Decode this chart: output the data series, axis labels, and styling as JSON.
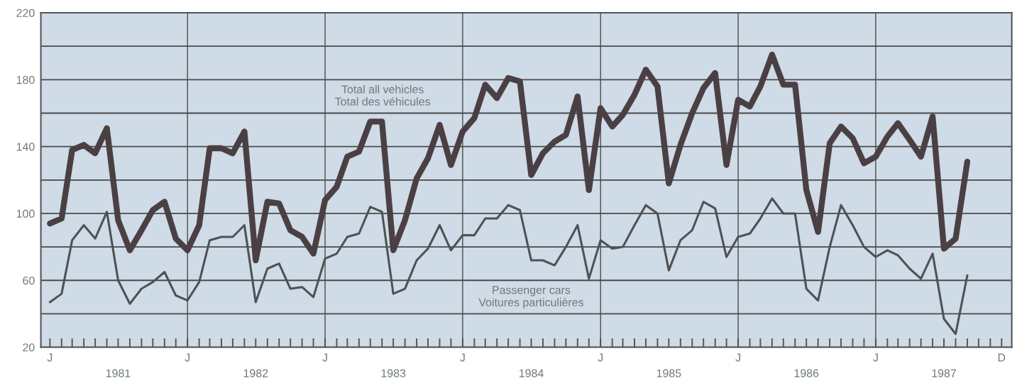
{
  "chart_data": {
    "type": "line",
    "x": [
      "1981-01",
      "1981-02",
      "1981-03",
      "1981-04",
      "1981-05",
      "1981-06",
      "1981-07",
      "1981-08",
      "1981-09",
      "1981-10",
      "1981-11",
      "1981-12",
      "1982-01",
      "1982-02",
      "1982-03",
      "1982-04",
      "1982-05",
      "1982-06",
      "1982-07",
      "1982-08",
      "1982-09",
      "1982-10",
      "1982-11",
      "1982-12",
      "1983-01",
      "1983-02",
      "1983-03",
      "1983-04",
      "1983-05",
      "1983-06",
      "1983-07",
      "1983-08",
      "1983-09",
      "1983-10",
      "1983-11",
      "1983-12",
      "1984-01",
      "1984-02",
      "1984-03",
      "1984-04",
      "1984-05",
      "1984-06",
      "1984-07",
      "1984-08",
      "1984-09",
      "1984-10",
      "1984-11",
      "1984-12",
      "1985-01",
      "1985-02",
      "1985-03",
      "1985-04",
      "1985-05",
      "1985-06",
      "1985-07",
      "1985-08",
      "1985-09",
      "1985-10",
      "1985-11",
      "1985-12",
      "1986-01",
      "1986-02",
      "1986-03",
      "1986-04",
      "1986-05",
      "1986-06",
      "1986-07",
      "1986-08",
      "1986-09",
      "1986-10",
      "1986-11",
      "1986-12",
      "1987-01",
      "1987-02",
      "1987-03",
      "1987-04",
      "1987-05",
      "1987-06",
      "1987-07",
      "1987-08",
      "1987-09"
    ],
    "series": [
      {
        "name": "Total all vehicles\nTotal des véhicules",
        "color": "#4a4044",
        "values": [
          94,
          97,
          138,
          141,
          136,
          151,
          96,
          78,
          90,
          102,
          107,
          85,
          78,
          93,
          139,
          139,
          136,
          149,
          72,
          107,
          106,
          90,
          86,
          76,
          108,
          116,
          134,
          137,
          155,
          155,
          78,
          96,
          121,
          133,
          153,
          129,
          149,
          157,
          177,
          169,
          181,
          179,
          123,
          136,
          143,
          147,
          170,
          114,
          163,
          152,
          159,
          171,
          186,
          176,
          118,
          141,
          160,
          175,
          184,
          129,
          168,
          164,
          176,
          195,
          177,
          177,
          114,
          89,
          142,
          152,
          145,
          130,
          134,
          146,
          154,
          144,
          134,
          158,
          79,
          85,
          131
        ]
      },
      {
        "name": "Passenger cars\nVoitures particulières",
        "color": "#4f5155",
        "values": [
          47,
          52,
          84,
          93,
          85,
          101,
          60,
          46,
          55,
          59,
          65,
          51,
          48,
          59,
          84,
          86,
          86,
          93,
          47,
          67,
          70,
          55,
          56,
          50,
          73,
          76,
          86,
          88,
          104,
          101,
          52,
          55,
          72,
          79,
          93,
          78,
          87,
          87,
          97,
          97,
          105,
          102,
          72,
          72,
          69,
          80,
          93,
          61,
          84,
          79,
          80,
          93,
          105,
          100,
          66,
          84,
          90,
          107,
          103,
          74,
          86,
          88,
          97,
          109,
          100,
          100,
          55,
          48,
          80,
          105,
          93,
          80,
          74,
          78,
          75,
          67,
          61,
          76,
          37,
          28,
          63
        ]
      }
    ],
    "xlim": [
      "1980-12-08",
      "1987-12-28"
    ],
    "xticks": [
      {
        "value": "1981-01",
        "label": null
      },
      {
        "value": "1981-02",
        "label": null
      },
      {
        "value": "1981-03",
        "label": null
      },
      {
        "value": "1981-04",
        "label": null
      },
      {
        "value": "1981-05",
        "label": null
      },
      {
        "value": "1981-06",
        "label": null
      },
      {
        "value": "1981-07",
        "label": "1981"
      },
      {
        "value": "1981-08",
        "label": null
      },
      {
        "value": "1981-09",
        "label": null
      },
      {
        "value": "1981-10",
        "label": null
      },
      {
        "value": "1981-11",
        "label": null
      },
      {
        "value": "1981-12",
        "label": null
      },
      {
        "value": "1982-01",
        "label": null
      },
      {
        "value": "1982-02",
        "label": null
      },
      {
        "value": "1982-03",
        "label": null
      },
      {
        "value": "1982-04",
        "label": null
      },
      {
        "value": "1982-05",
        "label": null
      },
      {
        "value": "1982-06",
        "label": null
      },
      {
        "value": "1982-07",
        "label": "1982"
      },
      {
        "value": "1982-08",
        "label": null
      },
      {
        "value": "1982-09",
        "label": null
      },
      {
        "value": "1982-10",
        "label": null
      },
      {
        "value": "1982-11",
        "label": null
      },
      {
        "value": "1982-12",
        "label": null
      },
      {
        "value": "1983-01",
        "label": null
      },
      {
        "value": "1983-02",
        "label": null
      },
      {
        "value": "1983-03",
        "label": null
      },
      {
        "value": "1983-04",
        "label": null
      },
      {
        "value": "1983-05",
        "label": null
      },
      {
        "value": "1983-06",
        "label": null
      },
      {
        "value": "1983-07",
        "label": "1983"
      },
      {
        "value": "1983-08",
        "label": null
      },
      {
        "value": "1983-09",
        "label": null
      },
      {
        "value": "1983-10",
        "label": null
      },
      {
        "value": "1983-11",
        "label": null
      },
      {
        "value": "1983-12",
        "label": null
      },
      {
        "value": "1984-01",
        "label": null
      },
      {
        "value": "1984-02",
        "label": null
      },
      {
        "value": "1984-03",
        "label": null
      },
      {
        "value": "1984-04",
        "label": null
      },
      {
        "value": "1984-05",
        "label": null
      },
      {
        "value": "1984-06",
        "label": null
      },
      {
        "value": "1984-07",
        "label": "1984"
      },
      {
        "value": "1984-08",
        "label": null
      },
      {
        "value": "1984-09",
        "label": null
      },
      {
        "value": "1984-10",
        "label": null
      },
      {
        "value": "1984-11",
        "label": null
      },
      {
        "value": "1984-12",
        "label": null
      },
      {
        "value": "1985-01",
        "label": null
      },
      {
        "value": "1985-02",
        "label": null
      },
      {
        "value": "1985-03",
        "label": null
      },
      {
        "value": "1985-04",
        "label": null
      },
      {
        "value": "1985-05",
        "label": null
      },
      {
        "value": "1985-06",
        "label": null
      },
      {
        "value": "1985-07",
        "label": "1985"
      },
      {
        "value": "1985-08",
        "label": null
      },
      {
        "value": "1985-09",
        "label": null
      },
      {
        "value": "1985-10",
        "label": null
      },
      {
        "value": "1985-11",
        "label": null
      },
      {
        "value": "1985-12",
        "label": null
      },
      {
        "value": "1986-01",
        "label": null
      },
      {
        "value": "1986-02",
        "label": null
      },
      {
        "value": "1986-03",
        "label": null
      },
      {
        "value": "1986-04",
        "label": null
      },
      {
        "value": "1986-05",
        "label": null
      },
      {
        "value": "1986-06",
        "label": null
      },
      {
        "value": "1986-07",
        "label": "1986"
      },
      {
        "value": "1986-08",
        "label": null
      },
      {
        "value": "1986-09",
        "label": null
      },
      {
        "value": "1986-10",
        "label": null
      },
      {
        "value": "1986-11",
        "label": null
      },
      {
        "value": "1986-12",
        "label": null
      },
      {
        "value": "1987-01",
        "label": null
      },
      {
        "value": "1987-02",
        "label": null
      },
      {
        "value": "1987-03",
        "label": null
      },
      {
        "value": "1987-04",
        "label": null
      },
      {
        "value": "1987-05",
        "label": null
      },
      {
        "value": "1987-06",
        "label": null
      },
      {
        "value": "1987-07",
        "label": "1987"
      },
      {
        "value": "1987-08",
        "label": null
      },
      {
        "value": "1987-09",
        "label": null
      },
      {
        "value": "1987-10",
        "label": null
      },
      {
        "value": "1987-11",
        "label": null
      },
      {
        "value": "1987-12",
        "label": null
      }
    ],
    "annotations": [
      "J",
      "J",
      "J",
      "J",
      "J",
      "J",
      "J",
      "D"
    ],
    "ylim": [
      20,
      220
    ],
    "yticks": [
      20,
      {
        "value": 40,
        "label": null
      },
      60,
      {
        "value": 80,
        "label": null
      },
      100,
      {
        "value": 120,
        "label": null
      },
      140,
      {
        "value": 160,
        "label": null
      },
      180,
      {
        "value": 200,
        "label": null
      },
      220
    ],
    "ref_lines": [
      {
        "axis": "x",
        "value": "1982-01",
        "label": null
      },
      {
        "axis": "x",
        "value": "1983-01",
        "label": null
      },
      {
        "axis": "x",
        "value": "1984-01",
        "label": null
      },
      {
        "axis": "x",
        "value": "1985-01",
        "label": null
      },
      {
        "axis": "x",
        "value": "1986-01",
        "label": null
      },
      {
        "axis": "x",
        "value": "1987-01",
        "label": null
      }
    ],
    "grid": "y",
    "legend": false,
    "marker": "none",
    "line_style": "solid"
  }
}
